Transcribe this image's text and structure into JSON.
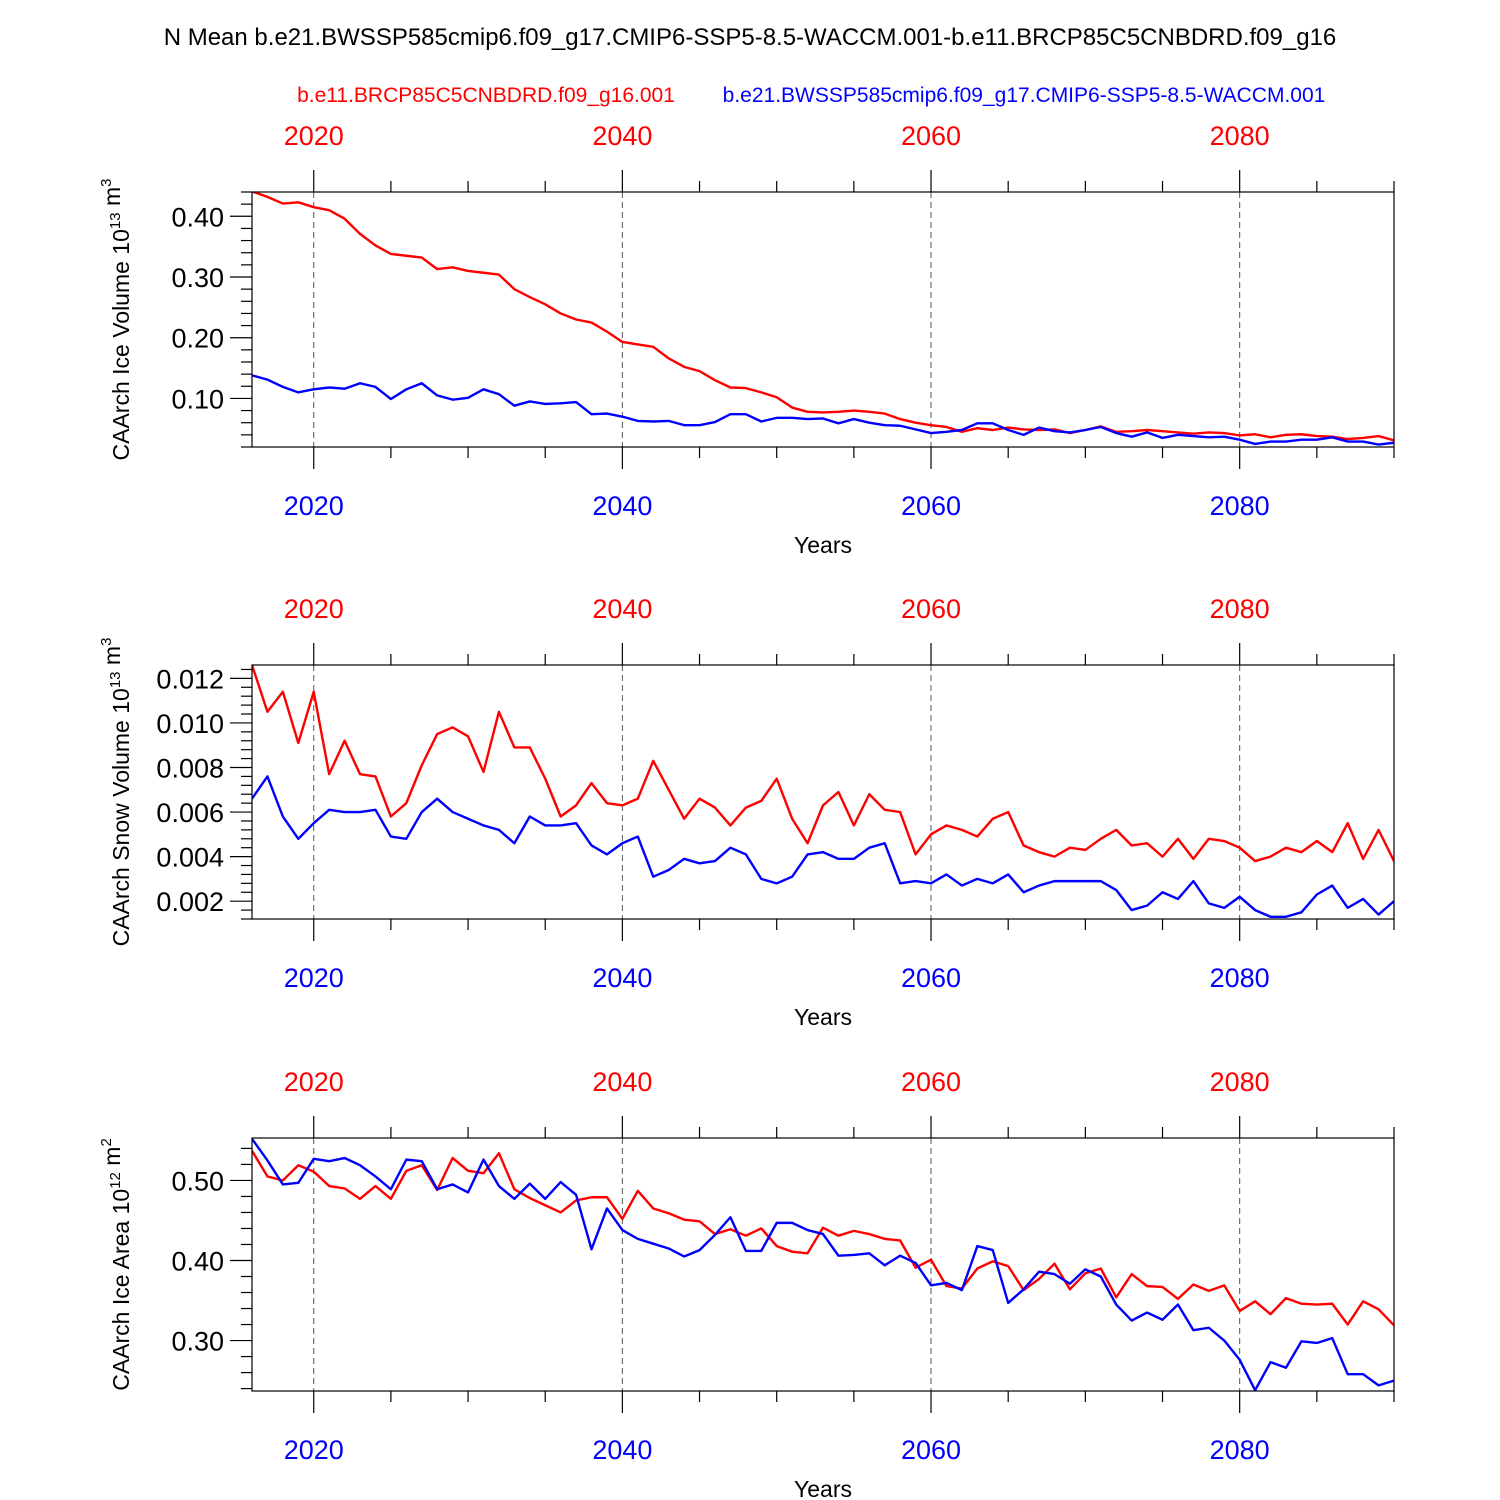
{
  "page": {
    "title": "N Mean b.e21.BWSSP585cmip6.f09_g17.CMIP6-SSP5-8.5-WACCM.001-b.e11.BRCP85C5CNBDRD.f09_g16"
  },
  "legend": {
    "red_label": "b.e11.BRCP85C5CNBDRD.f09_g16.001",
    "blue_label": "b.e21.BWSSP585cmip6.f09_g17.CMIP6-SSP5-8.5-WACCM.001"
  },
  "colors": {
    "red": "#ff0000",
    "blue": "#0000ff",
    "frame": "#000000"
  },
  "chart_data": [
    {
      "type": "line",
      "title": "",
      "ylabel": "CAArch Ice Volume",
      "yunit_prefix": "10",
      "yunit_exp": "13",
      "yunit_suffix": " m",
      "yunit_suffix_exp": "3",
      "xlabel": "Years",
      "xlim": [
        2016,
        2090
      ],
      "ylim": [
        0.02,
        0.44
      ],
      "xticks": [
        2020,
        2040,
        2060,
        2080
      ],
      "yticks": [
        0.1,
        0.2,
        0.3,
        0.4
      ],
      "ytick_labels": [
        "0.10",
        "0.20",
        "0.30",
        "0.40"
      ],
      "yminor_step": 0.02,
      "grid": "dashed vertical at major x ticks",
      "series": [
        {
          "name": "b.e11.BRCP85C5CNBDRD.f09_g16.001",
          "color": "red",
          "x_start": 2016,
          "values": [
            0.441,
            0.432,
            0.421,
            0.423,
            0.415,
            0.41,
            0.396,
            0.371,
            0.352,
            0.338,
            0.335,
            0.332,
            0.313,
            0.316,
            0.31,
            0.307,
            0.304,
            0.28,
            0.267,
            0.255,
            0.24,
            0.23,
            0.225,
            0.21,
            0.193,
            0.189,
            0.185,
            0.166,
            0.152,
            0.145,
            0.13,
            0.118,
            0.117,
            0.11,
            0.102,
            0.085,
            0.078,
            0.077,
            0.078,
            0.08,
            0.078,
            0.075,
            0.066,
            0.06,
            0.056,
            0.053,
            0.045,
            0.051,
            0.048,
            0.052,
            0.049,
            0.048,
            0.049,
            0.043,
            0.048,
            0.054,
            0.045,
            0.046,
            0.048,
            0.046,
            0.044,
            0.042,
            0.044,
            0.043,
            0.039,
            0.041,
            0.036,
            0.04,
            0.041,
            0.038,
            0.037,
            0.033,
            0.035,
            0.038,
            0.031
          ]
        },
        {
          "name": "b.e21.BWSSP585cmip6.f09_g17.CMIP6-SSP5-8.5-WACCM.001",
          "color": "blue",
          "x_start": 2016,
          "values": [
            0.138,
            0.131,
            0.119,
            0.11,
            0.115,
            0.118,
            0.116,
            0.125,
            0.119,
            0.099,
            0.115,
            0.125,
            0.105,
            0.098,
            0.101,
            0.115,
            0.107,
            0.088,
            0.095,
            0.091,
            0.092,
            0.094,
            0.074,
            0.075,
            0.07,
            0.063,
            0.062,
            0.063,
            0.056,
            0.056,
            0.061,
            0.074,
            0.074,
            0.062,
            0.068,
            0.068,
            0.066,
            0.067,
            0.059,
            0.066,
            0.06,
            0.056,
            0.055,
            0.049,
            0.043,
            0.045,
            0.048,
            0.059,
            0.059,
            0.048,
            0.04,
            0.052,
            0.046,
            0.044,
            0.048,
            0.053,
            0.043,
            0.037,
            0.044,
            0.035,
            0.04,
            0.038,
            0.036,
            0.037,
            0.032,
            0.025,
            0.029,
            0.029,
            0.032,
            0.032,
            0.036,
            0.029,
            0.029,
            0.024,
            0.027
          ]
        }
      ]
    },
    {
      "type": "line",
      "title": "",
      "ylabel": "CAArch Snow Volume",
      "yunit_prefix": "10",
      "yunit_exp": "13",
      "yunit_suffix": " m",
      "yunit_suffix_exp": "3",
      "xlabel": "Years",
      "xlim": [
        2016,
        2090
      ],
      "ylim": [
        0.0012,
        0.0126
      ],
      "xticks": [
        2020,
        2040,
        2060,
        2080
      ],
      "yticks": [
        0.002,
        0.004,
        0.006,
        0.008,
        0.01,
        0.012
      ],
      "ytick_labels": [
        "0.002",
        "0.004",
        "0.006",
        "0.008",
        "0.010",
        "0.012"
      ],
      "yminor_step": 0.0004,
      "grid": "dashed vertical at major x ticks",
      "series": [
        {
          "name": "b.e11.BRCP85C5CNBDRD.f09_g16.001",
          "color": "red",
          "x_start": 2016,
          "values": [
            0.0126,
            0.0105,
            0.0114,
            0.0091,
            0.0114,
            0.0077,
            0.0092,
            0.0077,
            0.0076,
            0.0058,
            0.0064,
            0.0081,
            0.0095,
            0.0098,
            0.0094,
            0.0078,
            0.0105,
            0.0089,
            0.0089,
            0.0075,
            0.0058,
            0.0063,
            0.0073,
            0.0064,
            0.0063,
            0.0066,
            0.0083,
            0.007,
            0.0057,
            0.0066,
            0.0062,
            0.0054,
            0.0062,
            0.0065,
            0.0075,
            0.0057,
            0.0046,
            0.0063,
            0.0069,
            0.0054,
            0.0068,
            0.0061,
            0.006,
            0.0041,
            0.005,
            0.0054,
            0.0052,
            0.0049,
            0.0057,
            0.006,
            0.0045,
            0.0042,
            0.004,
            0.0044,
            0.0043,
            0.0048,
            0.0052,
            0.0045,
            0.0046,
            0.004,
            0.0048,
            0.0039,
            0.0048,
            0.0047,
            0.0044,
            0.0038,
            0.004,
            0.0044,
            0.0042,
            0.0047,
            0.0042,
            0.0055,
            0.0039,
            0.0052,
            0.0038
          ]
        },
        {
          "name": "b.e21.BWSSP585cmip6.f09_g17.CMIP6-SSP5-8.5-WACCM.001",
          "color": "blue",
          "x_start": 2016,
          "values": [
            0.0066,
            0.0076,
            0.0058,
            0.0048,
            0.0055,
            0.0061,
            0.006,
            0.006,
            0.0061,
            0.0049,
            0.0048,
            0.006,
            0.0066,
            0.006,
            0.0057,
            0.0054,
            0.0052,
            0.0046,
            0.0058,
            0.0054,
            0.0054,
            0.0055,
            0.0045,
            0.0041,
            0.0046,
            0.0049,
            0.0031,
            0.0034,
            0.0039,
            0.0037,
            0.0038,
            0.0044,
            0.0041,
            0.003,
            0.0028,
            0.0031,
            0.0041,
            0.0042,
            0.0039,
            0.0039,
            0.0044,
            0.0046,
            0.0028,
            0.0029,
            0.0028,
            0.0032,
            0.0027,
            0.003,
            0.0028,
            0.0032,
            0.0024,
            0.0027,
            0.0029,
            0.0029,
            0.0029,
            0.0029,
            0.0025,
            0.0016,
            0.0018,
            0.0024,
            0.0021,
            0.0029,
            0.0019,
            0.0017,
            0.0022,
            0.0016,
            0.0013,
            0.0013,
            0.0015,
            0.0023,
            0.0027,
            0.0017,
            0.0021,
            0.0014,
            0.002
          ]
        }
      ]
    },
    {
      "type": "line",
      "title": "",
      "ylabel": "CAArch Ice Area",
      "yunit_prefix": "10",
      "yunit_exp": "12",
      "yunit_suffix": " m",
      "yunit_suffix_exp": "2",
      "xlabel": "Years",
      "xlim": [
        2016,
        2090
      ],
      "ylim": [
        0.237,
        0.553
      ],
      "xticks": [
        2020,
        2040,
        2060,
        2080
      ],
      "yticks": [
        0.3,
        0.4,
        0.5
      ],
      "ytick_labels": [
        "0.30",
        "0.40",
        "0.50"
      ],
      "yminor_step": 0.02,
      "grid": "dashed vertical at major x ticks",
      "series": [
        {
          "name": "b.e11.BRCP85C5CNBDRD.f09_g16.001",
          "color": "red",
          "x_start": 2016,
          "values": [
            0.537,
            0.505,
            0.5,
            0.519,
            0.511,
            0.493,
            0.49,
            0.477,
            0.493,
            0.477,
            0.512,
            0.519,
            0.488,
            0.528,
            0.512,
            0.509,
            0.534,
            0.489,
            0.478,
            0.469,
            0.46,
            0.475,
            0.479,
            0.479,
            0.452,
            0.487,
            0.465,
            0.459,
            0.451,
            0.449,
            0.433,
            0.439,
            0.431,
            0.44,
            0.418,
            0.411,
            0.409,
            0.441,
            0.431,
            0.437,
            0.433,
            0.427,
            0.425,
            0.391,
            0.401,
            0.368,
            0.365,
            0.39,
            0.399,
            0.393,
            0.363,
            0.377,
            0.396,
            0.364,
            0.384,
            0.39,
            0.354,
            0.383,
            0.368,
            0.367,
            0.352,
            0.37,
            0.362,
            0.369,
            0.337,
            0.349,
            0.333,
            0.353,
            0.346,
            0.345,
            0.346,
            0.32,
            0.349,
            0.339,
            0.319
          ]
        },
        {
          "name": "b.e21.BWSSP585cmip6.f09_g17.CMIP6-SSP5-8.5-WACCM.001",
          "color": "blue",
          "x_start": 2016,
          "values": [
            0.552,
            0.525,
            0.495,
            0.497,
            0.527,
            0.524,
            0.528,
            0.519,
            0.505,
            0.489,
            0.526,
            0.524,
            0.489,
            0.495,
            0.485,
            0.526,
            0.493,
            0.477,
            0.496,
            0.477,
            0.498,
            0.482,
            0.414,
            0.465,
            0.438,
            0.427,
            0.421,
            0.415,
            0.405,
            0.413,
            0.432,
            0.454,
            0.412,
            0.412,
            0.447,
            0.447,
            0.438,
            0.433,
            0.406,
            0.407,
            0.409,
            0.394,
            0.406,
            0.397,
            0.369,
            0.372,
            0.363,
            0.418,
            0.413,
            0.347,
            0.364,
            0.386,
            0.383,
            0.371,
            0.389,
            0.38,
            0.345,
            0.325,
            0.335,
            0.326,
            0.345,
            0.313,
            0.316,
            0.3,
            0.276,
            0.238,
            0.273,
            0.266,
            0.299,
            0.297,
            0.303,
            0.258,
            0.258,
            0.244,
            0.25
          ]
        }
      ]
    }
  ]
}
